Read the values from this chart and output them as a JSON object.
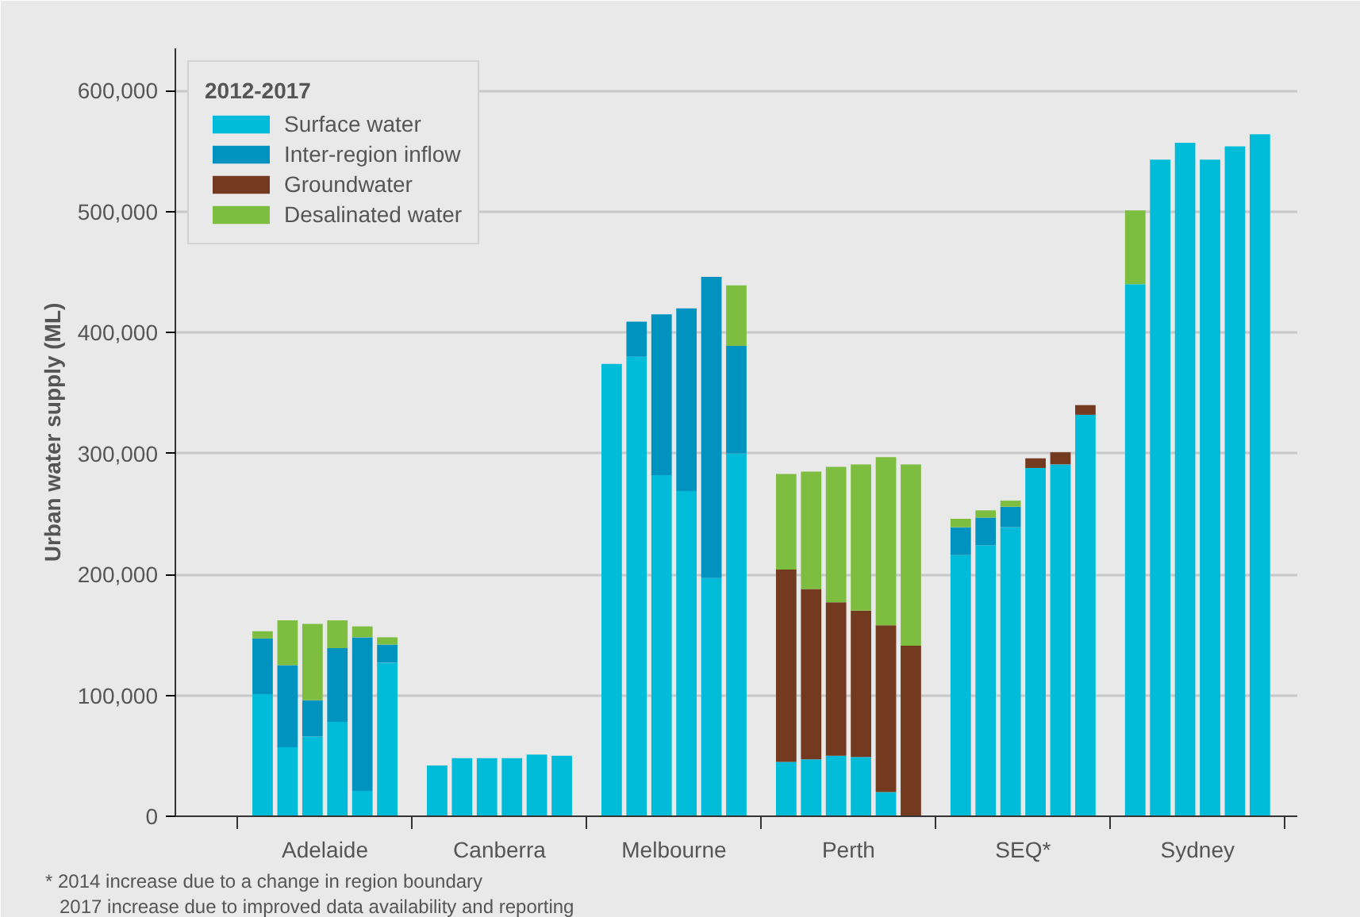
{
  "chart_data": {
    "type": "bar",
    "stacked": true,
    "ylabel": "Urban water supply (ML)",
    "legend_title": "2012-2017",
    "legend": "top left",
    "grid": "y",
    "categories": [
      null,
      null,
      "Adelaide",
      null,
      null,
      null,
      null,
      null,
      null,
      "Canberra",
      null,
      null,
      null,
      null,
      null,
      null,
      "Melbourne",
      null,
      null,
      null,
      null,
      null,
      null,
      "Perth",
      null,
      null,
      null,
      null,
      null,
      null,
      "SEQ*",
      null,
      null,
      null,
      null,
      null,
      null,
      "Sydney",
      null,
      null,
      null
    ],
    "ylim": [
      0,
      635000
    ],
    "yticks": [
      {
        "value": 0,
        "label": "0"
      },
      {
        "value": 100000,
        "label": "100,000"
      },
      {
        "value": 200000,
        "label": "200,000"
      },
      {
        "value": 300000,
        "label": "300,000"
      },
      {
        "value": 400000,
        "label": "400,000"
      },
      {
        "value": 500000,
        "label": "500,000"
      },
      {
        "value": 600000,
        "label": "600,000"
      }
    ],
    "series": [
      {
        "name": "Surface water",
        "color": "#00bcd9",
        "values": [
          101000,
          57000,
          66000,
          78000,
          21000,
          127000,
          null,
          42000,
          48000,
          48000,
          48000,
          51000,
          50000,
          null,
          374000,
          380000,
          282000,
          269000,
          197000,
          300000,
          null,
          45000,
          47000,
          50000,
          49000,
          20000,
          null,
          null,
          216000,
          224000,
          239000,
          288000,
          291000,
          332000,
          null,
          440000,
          543000,
          557000,
          543000,
          554000,
          564000
        ]
      },
      {
        "name": "Inter-region inflow",
        "color": "#0093bf",
        "values": [
          46000,
          68000,
          30000,
          61000,
          127000,
          15000,
          null,
          null,
          null,
          null,
          null,
          null,
          null,
          null,
          null,
          29000,
          133000,
          151000,
          249000,
          89000,
          null,
          null,
          null,
          null,
          null,
          null,
          null,
          null,
          23000,
          23000,
          17000,
          null,
          null,
          null,
          null,
          null,
          null,
          null,
          null,
          null,
          null
        ]
      },
      {
        "name": "Groundwater",
        "color": "#733a20",
        "values": [
          null,
          null,
          null,
          null,
          null,
          null,
          null,
          null,
          null,
          null,
          null,
          null,
          null,
          null,
          null,
          null,
          null,
          null,
          null,
          null,
          null,
          159000,
          141000,
          127000,
          121000,
          138000,
          141000,
          null,
          null,
          null,
          null,
          8000,
          10000,
          8000,
          null,
          null,
          null,
          null,
          null,
          null,
          null
        ]
      },
      {
        "name": "Desalinated water",
        "color": "#7dbe41",
        "values": [
          6000,
          37000,
          63000,
          23000,
          9000,
          6000,
          null,
          null,
          null,
          null,
          null,
          null,
          null,
          null,
          null,
          null,
          null,
          null,
          null,
          50000,
          null,
          79000,
          97000,
          112000,
          121000,
          139000,
          150000,
          null,
          7000,
          6000,
          5000,
          null,
          null,
          null,
          null,
          61000,
          null,
          null,
          null,
          null,
          null
        ]
      }
    ],
    "annotations": [
      "* 2014 increase due to a change in region boundary",
      "2017 increase due to improved data availability and reporting"
    ]
  }
}
